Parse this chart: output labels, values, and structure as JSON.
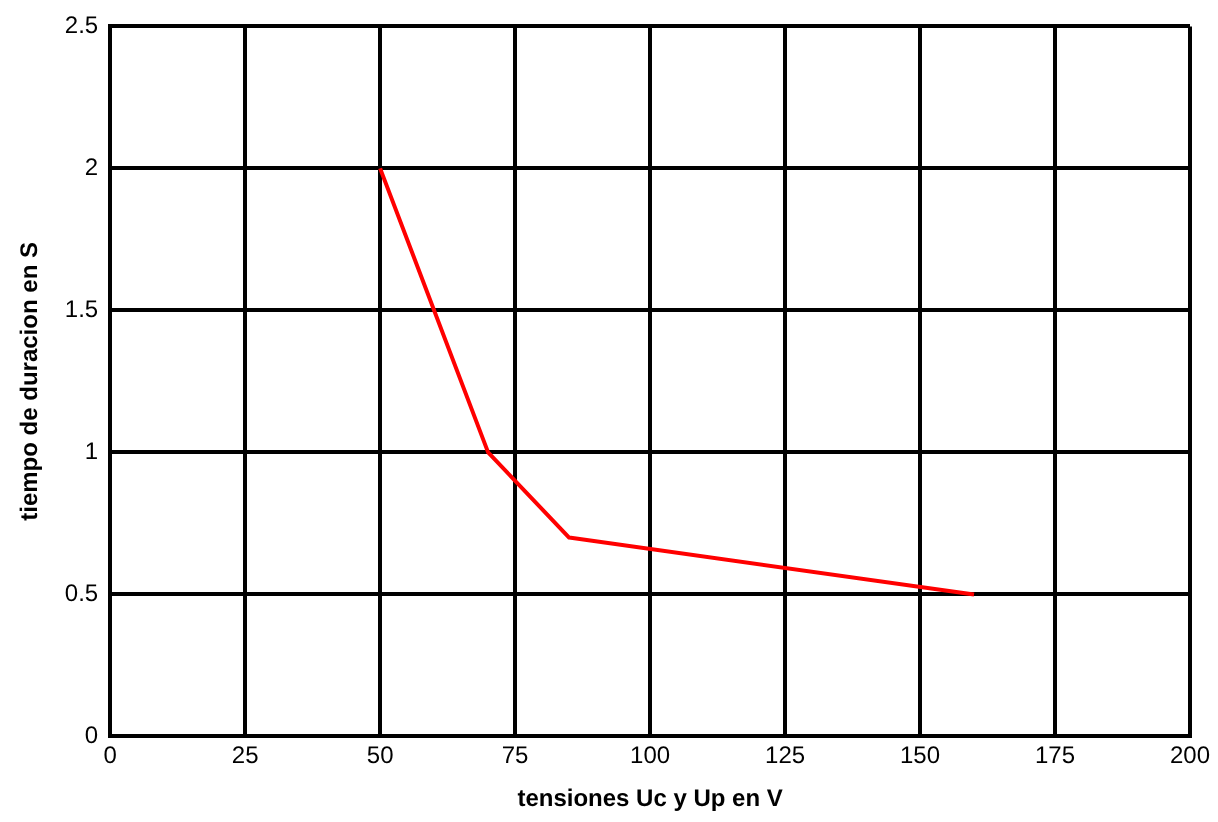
{
  "chart_data": {
    "type": "line",
    "xlabel": "tensiones Uc y Up en V",
    "ylabel": "tiempo de duracion en S",
    "x": [
      50,
      70,
      85,
      160
    ],
    "series": [
      {
        "color": "#ff0000",
        "values": [
          2,
          1,
          0.7,
          0.5
        ]
      }
    ],
    "xlim": [
      0,
      200
    ],
    "xticks": [
      0,
      25,
      50,
      75,
      100,
      125,
      150,
      175,
      200
    ],
    "ylim": [
      0,
      2.5
    ],
    "yticks": [
      0,
      0.5,
      1,
      1.5,
      2,
      2.5
    ],
    "grid": true,
    "legend": false,
    "marker": "none",
    "line_style": "solid"
  }
}
